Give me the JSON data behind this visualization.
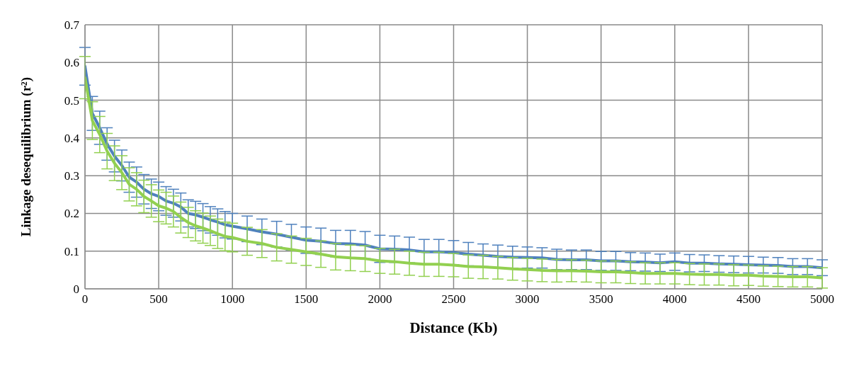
{
  "chart_data": {
    "type": "line",
    "xlabel": "Distance (Kb)",
    "ylabel": "Linkage desequilibrium  (r²)",
    "x": [
      0,
      50,
      100,
      150,
      200,
      250,
      300,
      350,
      400,
      450,
      500,
      550,
      600,
      650,
      700,
      750,
      800,
      850,
      900,
      950,
      1000,
      1100,
      1200,
      1300,
      1400,
      1500,
      1600,
      1700,
      1800,
      1900,
      2000,
      2100,
      2200,
      2300,
      2400,
      2500,
      2600,
      2700,
      2800,
      2900,
      3000,
      3100,
      3200,
      3300,
      3400,
      3500,
      3600,
      3700,
      3800,
      3900,
      4000,
      4100,
      4200,
      4300,
      4400,
      4500,
      4600,
      4700,
      4800,
      4900,
      5000
    ],
    "series": [
      {
        "color": "#4f81bd",
        "values": [
          0.59,
          0.465,
          0.427,
          0.384,
          0.352,
          0.327,
          0.296,
          0.283,
          0.264,
          0.252,
          0.245,
          0.233,
          0.227,
          0.217,
          0.2,
          0.196,
          0.19,
          0.183,
          0.177,
          0.17,
          0.166,
          0.159,
          0.151,
          0.145,
          0.137,
          0.129,
          0.126,
          0.12,
          0.119,
          0.116,
          0.106,
          0.105,
          0.103,
          0.098,
          0.098,
          0.096,
          0.092,
          0.089,
          0.086,
          0.084,
          0.083,
          0.082,
          0.078,
          0.077,
          0.077,
          0.074,
          0.074,
          0.072,
          0.071,
          0.069,
          0.072,
          0.068,
          0.068,
          0.066,
          0.065,
          0.064,
          0.063,
          0.062,
          0.059,
          0.059,
          0.056
        ],
        "errors": [
          0.05,
          0.045,
          0.044,
          0.043,
          0.042,
          0.041,
          0.04,
          0.04,
          0.039,
          0.039,
          0.038,
          0.038,
          0.037,
          0.037,
          0.036,
          0.036,
          0.036,
          0.035,
          0.035,
          0.035,
          0.034,
          0.034,
          0.034,
          0.034,
          0.034,
          0.035,
          0.035,
          0.035,
          0.036,
          0.036,
          0.036,
          0.035,
          0.034,
          0.033,
          0.033,
          0.032,
          0.031,
          0.03,
          0.03,
          0.029,
          0.028,
          0.027,
          0.027,
          0.026,
          0.026,
          0.025,
          0.025,
          0.024,
          0.024,
          0.023,
          0.023,
          0.023,
          0.022,
          0.022,
          0.022,
          0.022,
          0.021,
          0.021,
          0.021,
          0.021,
          0.021
        ]
      },
      {
        "color": "#92d050",
        "values": [
          0.56,
          0.446,
          0.409,
          0.365,
          0.333,
          0.308,
          0.277,
          0.264,
          0.245,
          0.233,
          0.22,
          0.214,
          0.205,
          0.189,
          0.176,
          0.167,
          0.161,
          0.154,
          0.146,
          0.139,
          0.136,
          0.126,
          0.12,
          0.11,
          0.104,
          0.098,
          0.092,
          0.085,
          0.082,
          0.08,
          0.074,
          0.072,
          0.068,
          0.065,
          0.065,
          0.063,
          0.059,
          0.058,
          0.056,
          0.053,
          0.051,
          0.049,
          0.048,
          0.048,
          0.047,
          0.045,
          0.045,
          0.043,
          0.041,
          0.041,
          0.041,
          0.039,
          0.038,
          0.038,
          0.036,
          0.036,
          0.034,
          0.033,
          0.032,
          0.032,
          0.029
        ],
        "errors": [
          0.056,
          0.05,
          0.048,
          0.047,
          0.046,
          0.045,
          0.044,
          0.044,
          0.043,
          0.043,
          0.042,
          0.042,
          0.041,
          0.041,
          0.04,
          0.04,
          0.04,
          0.039,
          0.039,
          0.038,
          0.038,
          0.037,
          0.037,
          0.036,
          0.036,
          0.036,
          0.035,
          0.035,
          0.034,
          0.034,
          0.033,
          0.033,
          0.032,
          0.032,
          0.032,
          0.031,
          0.031,
          0.031,
          0.03,
          0.03,
          0.03,
          0.03,
          0.03,
          0.029,
          0.029,
          0.029,
          0.029,
          0.029,
          0.028,
          0.028,
          0.028,
          0.028,
          0.028,
          0.028,
          0.028,
          0.027,
          0.027,
          0.027,
          0.027,
          0.027,
          0.027
        ]
      }
    ],
    "xlim": [
      0,
      5000
    ],
    "xticks": [
      0,
      500,
      1000,
      1500,
      2000,
      2500,
      3000,
      3500,
      4000,
      4500,
      5000
    ],
    "ylim": [
      0,
      0.7
    ],
    "yticks": [
      0,
      0.1,
      0.2,
      0.3,
      0.4,
      0.5,
      0.6,
      0.7
    ],
    "grid": true
  }
}
